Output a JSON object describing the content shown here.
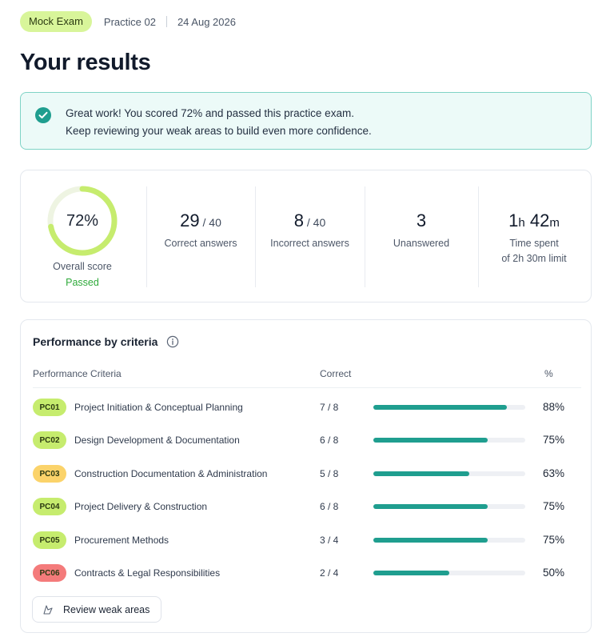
{
  "header": {
    "tag": "Mock Exam",
    "practice": "Practice 02",
    "date": "24 Aug 2026"
  },
  "page_title": "Your results",
  "alert": {
    "line1": "Great work! You scored 72% and passed this practice exam.",
    "line2": "Keep reviewing your weak areas to build even more confidence.",
    "icon": "check-circle-icon"
  },
  "summary": {
    "overall": {
      "value": "72%",
      "progress": 0.72,
      "label": "Overall score",
      "status": "Passed"
    },
    "correct": {
      "value": "29",
      "of": " / 40",
      "label": "Correct answers"
    },
    "incorrect": {
      "value": "8",
      "of": " / 40",
      "label": "Incorrect answers"
    },
    "unanswered": {
      "value": "3",
      "label": "Unanswered"
    },
    "time": {
      "hours": "1",
      "h_unit": "h",
      "minutes": "42",
      "m_unit": "m",
      "label": "Time spent",
      "sublabel": "of 2h 30m limit"
    }
  },
  "performance": {
    "title": "Performance by criteria",
    "columns": {
      "criteria": "Performance Criteria",
      "correct": "Correct",
      "pct": "%"
    },
    "rows": [
      {
        "code": "PC01",
        "name": "Project Initiation & Conceptual Planning",
        "correct": "7 / 8",
        "pct": "88%",
        "ratio": 0.88,
        "color": "#c6ec6e"
      },
      {
        "code": "PC02",
        "name": "Design Development & Documentation",
        "correct": "6 / 8",
        "pct": "75%",
        "ratio": 0.75,
        "color": "#c6ec6e"
      },
      {
        "code": "PC03",
        "name": "Construction Documentation & Administration",
        "correct": "5 / 8",
        "pct": "63%",
        "ratio": 0.63,
        "color": "#fbd36a"
      },
      {
        "code": "PC04",
        "name": "Project Delivery & Construction",
        "correct": "6 / 8",
        "pct": "75%",
        "ratio": 0.75,
        "color": "#c6ec6e"
      },
      {
        "code": "PC05",
        "name": "Procurement Methods",
        "correct": "3 / 4",
        "pct": "75%",
        "ratio": 0.75,
        "color": "#c6ec6e"
      },
      {
        "code": "PC06",
        "name": "Contracts & Legal Responsibilities",
        "correct": "2 / 4",
        "pct": "50%",
        "ratio": 0.5,
        "color": "#f47b7b"
      }
    ],
    "review_button": "Review weak areas"
  },
  "colors": {
    "accent": "#1f9e8f",
    "ring": "#c6ec6e",
    "passed": "#2eaa3a"
  }
}
